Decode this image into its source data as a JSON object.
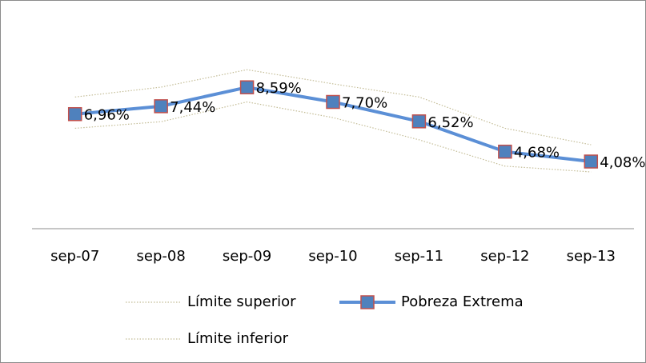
{
  "chart_data": {
    "type": "line",
    "categories": [
      "sep-07",
      "sep-08",
      "sep-09",
      "sep-10",
      "sep-11",
      "sep-12",
      "sep-13"
    ],
    "series": [
      {
        "name": "Límite superior",
        "color": "#c4bd97",
        "style": "dotted",
        "values": [
          8.0,
          8.6,
          9.66,
          8.8,
          8.0,
          6.1,
          5.1
        ]
      },
      {
        "name": "Pobreza Extrema",
        "color": "#5b8fd6",
        "marker_edge_color": "#c0504d",
        "marker_color": "#4f81bd",
        "style": "solid",
        "values": [
          6.96,
          7.44,
          8.59,
          7.7,
          6.52,
          4.68,
          4.08
        ],
        "value_labels": [
          "6,96%",
          "7,44%",
          "8,59%",
          "7,70%",
          "6,52%",
          "4,68%",
          "4,08%"
        ]
      },
      {
        "name": "Límite inferior",
        "color": "#c4bd97",
        "style": "dotted",
        "values": [
          6.1,
          6.5,
          7.7,
          6.75,
          5.4,
          3.8,
          3.45
        ]
      }
    ],
    "ylim": [
      0,
      12
    ]
  }
}
